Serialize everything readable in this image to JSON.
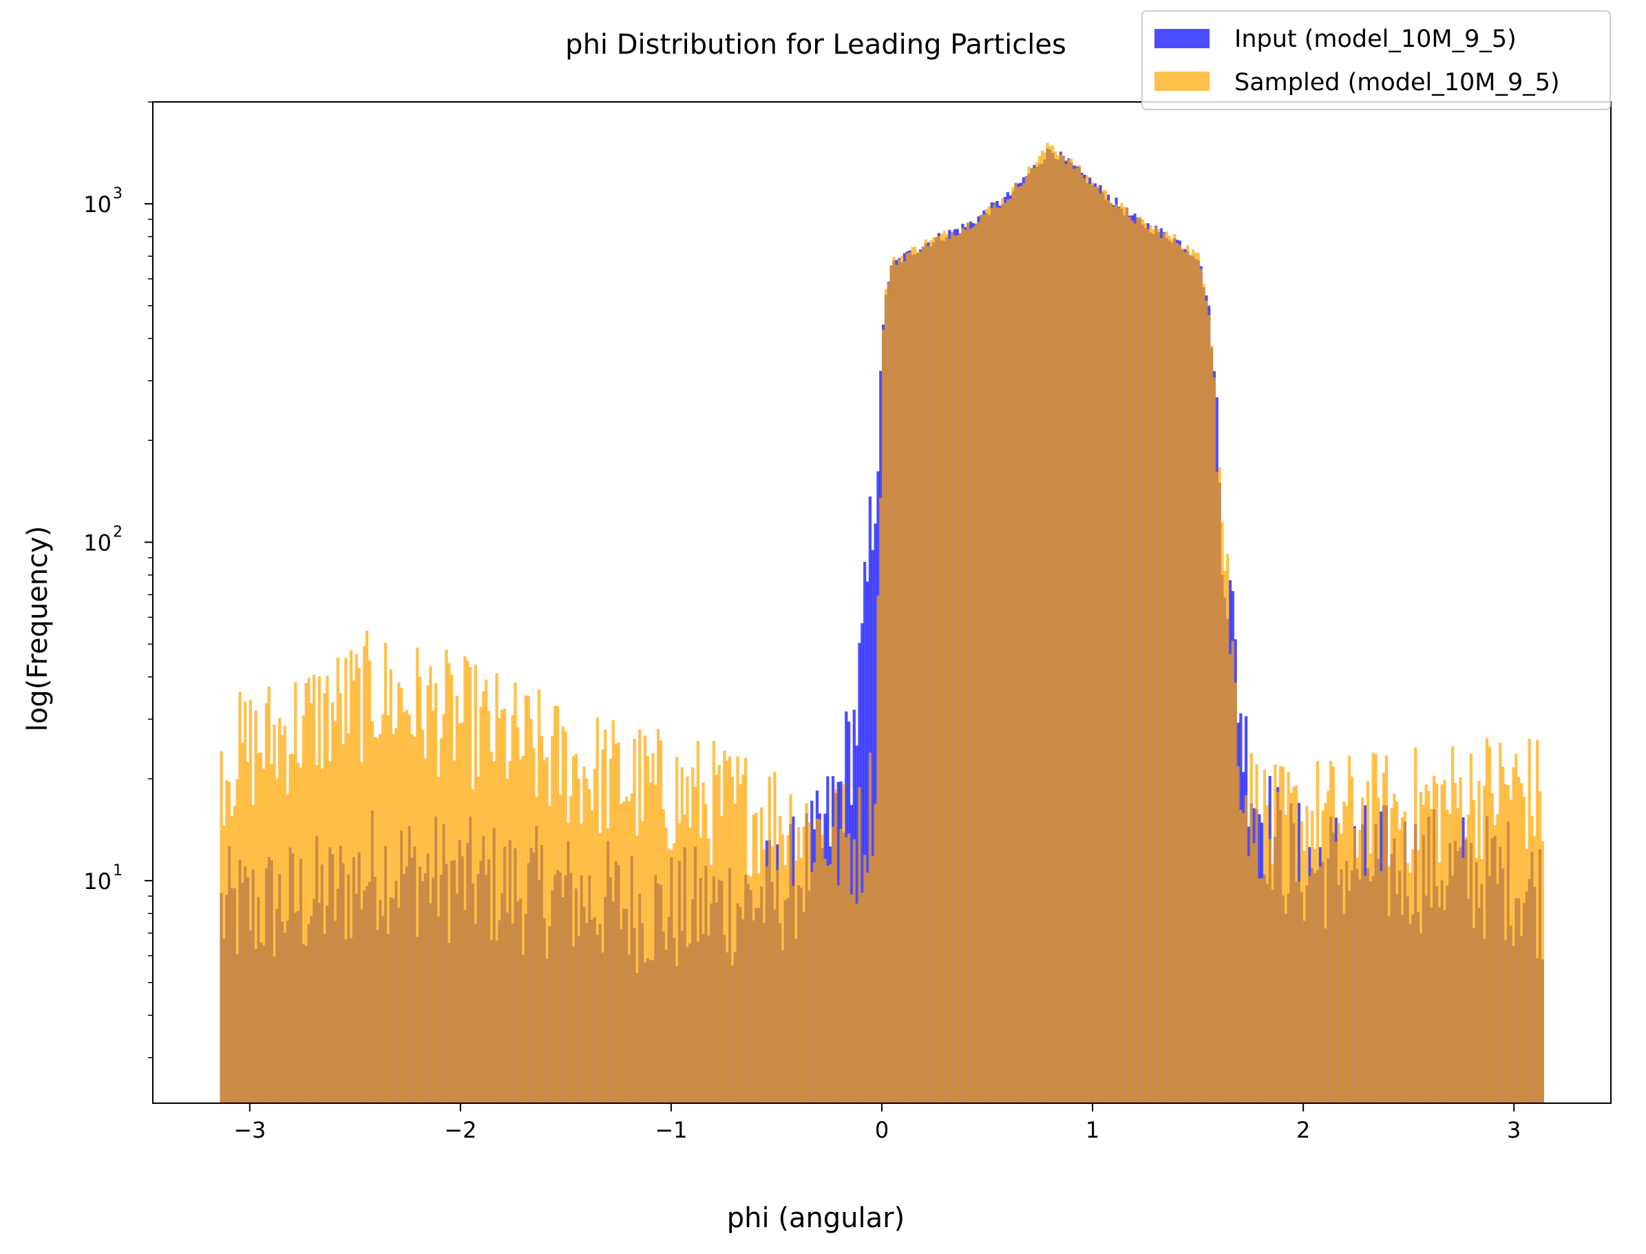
{
  "chart_data": {
    "type": "bar",
    "title": "phi Distribution for Leading Particles",
    "xlabel": "phi (angular)",
    "ylabel": "log(Frequency)",
    "xlim": [
      -3.46,
      3.46
    ],
    "ylim": [
      2.2,
      2000
    ],
    "yscale": "log",
    "grid": false,
    "legend_position": "top-right",
    "xticks": [
      {
        "value": -3,
        "label": "−3"
      },
      {
        "value": -2,
        "label": "−2"
      },
      {
        "value": -1,
        "label": "−1"
      },
      {
        "value": 0,
        "label": "0"
      },
      {
        "value": 1,
        "label": "1"
      },
      {
        "value": 2,
        "label": "2"
      },
      {
        "value": 3,
        "label": "3"
      }
    ],
    "yticks": [
      {
        "value": 10,
        "base": "10",
        "exp": "1"
      },
      {
        "value": 100,
        "base": "10",
        "exp": "2"
      },
      {
        "value": 1000,
        "base": "10",
        "exp": "3"
      }
    ],
    "bin_edges": [
      -3.1416,
      3.1416
    ],
    "series": [
      {
        "name": "Input (model_10M_9_5)",
        "color": "#0000ff",
        "opacity": 0.7,
        "profile": [
          [
            -3.14,
            8
          ],
          [
            -2.6,
            9
          ],
          [
            -2.4,
            11
          ],
          [
            -2.0,
            10
          ],
          [
            -1.5,
            9
          ],
          [
            -1.0,
            8
          ],
          [
            -0.5,
            9
          ],
          [
            -0.3,
            12
          ],
          [
            -0.2,
            18
          ],
          [
            -0.12,
            30
          ],
          [
            -0.08,
            60
          ],
          [
            -0.05,
            110
          ],
          [
            -0.02,
            200
          ],
          [
            0.0,
            380
          ],
          [
            0.02,
            560
          ],
          [
            0.05,
            660
          ],
          [
            0.2,
            760
          ],
          [
            0.4,
            860
          ],
          [
            0.6,
            1050
          ],
          [
            0.8,
            1450
          ],
          [
            1.0,
            1150
          ],
          [
            1.2,
            900
          ],
          [
            1.4,
            780
          ],
          [
            1.5,
            700
          ],
          [
            1.55,
            500
          ],
          [
            1.58,
            300
          ],
          [
            1.6,
            170
          ],
          [
            1.63,
            90
          ],
          [
            1.67,
            50
          ],
          [
            1.72,
            25
          ],
          [
            1.8,
            16
          ],
          [
            1.9,
            12
          ],
          [
            2.0,
            11
          ],
          [
            2.5,
            11
          ],
          [
            3.0,
            10
          ],
          [
            3.14,
            9
          ]
        ]
      },
      {
        "name": "Sampled (model_10M_9_5)",
        "color": "#ffa500",
        "opacity": 0.7,
        "profile": [
          [
            -3.14,
            22
          ],
          [
            -2.8,
            28
          ],
          [
            -2.4,
            36
          ],
          [
            -2.0,
            30
          ],
          [
            -1.5,
            22
          ],
          [
            -1.0,
            18
          ],
          [
            -0.6,
            16
          ],
          [
            -0.3,
            14
          ],
          [
            -0.2,
            13
          ],
          [
            -0.1,
            13
          ],
          [
            -0.03,
            20
          ],
          [
            0.0,
            370
          ],
          [
            0.02,
            560
          ],
          [
            0.05,
            670
          ],
          [
            0.2,
            760
          ],
          [
            0.4,
            860
          ],
          [
            0.6,
            1050
          ],
          [
            0.8,
            1500
          ],
          [
            1.0,
            1150
          ],
          [
            1.2,
            900
          ],
          [
            1.4,
            780
          ],
          [
            1.5,
            700
          ],
          [
            1.55,
            500
          ],
          [
            1.58,
            300
          ],
          [
            1.6,
            170
          ],
          [
            1.63,
            90
          ],
          [
            1.67,
            40
          ],
          [
            1.72,
            18
          ],
          [
            1.85,
            14
          ],
          [
            2.0,
            15
          ],
          [
            2.5,
            16
          ],
          [
            3.0,
            19
          ],
          [
            3.14,
            17
          ]
        ]
      }
    ]
  }
}
